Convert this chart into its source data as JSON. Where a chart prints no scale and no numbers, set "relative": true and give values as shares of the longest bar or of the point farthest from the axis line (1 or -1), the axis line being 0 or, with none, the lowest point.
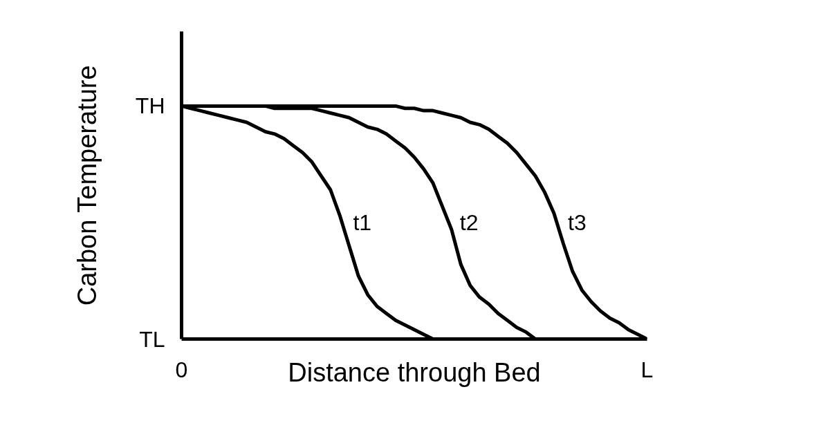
{
  "chart_data": {
    "type": "line",
    "xlabel": "Distance through Bed",
    "ylabel": "Carbon Temperature",
    "relative": true,
    "line_style": "solid",
    "categories": [
      "0",
      null,
      null,
      null,
      null,
      null,
      null,
      null,
      null,
      null,
      null,
      null,
      null,
      null,
      null,
      null,
      null,
      null,
      null,
      null,
      null,
      null,
      null,
      null,
      null,
      null,
      null,
      null,
      null,
      null,
      null,
      null,
      null,
      null,
      null,
      null,
      null,
      null,
      null,
      null,
      null,
      null,
      null,
      null,
      null,
      null,
      null,
      null,
      null,
      null,
      "L"
    ],
    "annotations": [
      "TH",
      "TL"
    ],
    "series": [
      {
        "name": "t1",
        "color": "#000000",
        "values": [
          1.0,
          0.99,
          0.98,
          0.97,
          0.96,
          0.95,
          0.94,
          0.93,
          0.91,
          0.89,
          0.88,
          0.86,
          0.83,
          0.8,
          0.76,
          0.7,
          0.64,
          0.53,
          0.4,
          0.27,
          0.19,
          0.14,
          0.11,
          0.08,
          0.06,
          0.04,
          0.02,
          0,
          null,
          null,
          null,
          null,
          null,
          null,
          null,
          null,
          null,
          null,
          null,
          null,
          null,
          null,
          null,
          null,
          null,
          null,
          null,
          null,
          null,
          null,
          null
        ]
      },
      {
        "name": "t2",
        "color": "#000000",
        "values": [
          1.0,
          1.0,
          1.0,
          1.0,
          1.0,
          1.0,
          1.0,
          1.0,
          1.0,
          1.0,
          0.99,
          0.99,
          0.99,
          0.99,
          0.99,
          0.98,
          0.97,
          0.96,
          0.95,
          0.93,
          0.91,
          0.9,
          0.88,
          0.85,
          0.82,
          0.78,
          0.73,
          0.67,
          0.57,
          0.47,
          0.32,
          0.23,
          0.18,
          0.15,
          0.11,
          0.08,
          0.05,
          0.03,
          0,
          null,
          null,
          null,
          null,
          null,
          null,
          null,
          null,
          null,
          null,
          null,
          null
        ]
      },
      {
        "name": "t3",
        "color": "#000000",
        "values": [
          1.0,
          1.0,
          1.0,
          1.0,
          1.0,
          1.0,
          1.0,
          1.0,
          1.0,
          1.0,
          1.0,
          1.0,
          1.0,
          1.0,
          1.0,
          1.0,
          1.0,
          1.0,
          1.0,
          1.0,
          1.0,
          1.0,
          1.0,
          1.0,
          0.99,
          0.99,
          0.98,
          0.98,
          0.97,
          0.96,
          0.95,
          0.93,
          0.92,
          0.9,
          0.87,
          0.84,
          0.8,
          0.75,
          0.7,
          0.63,
          0.54,
          0.41,
          0.29,
          0.21,
          0.16,
          0.12,
          0.09,
          0.07,
          0.04,
          0.02,
          0
        ]
      }
    ]
  }
}
